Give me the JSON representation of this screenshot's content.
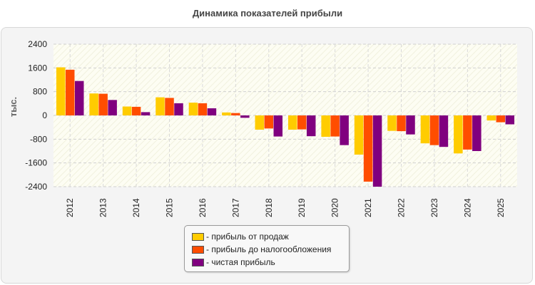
{
  "chart_data": {
    "type": "bar",
    "title": "Динамика показателей прибыли",
    "ylabel": "тыс.",
    "xlabel": "",
    "ylim": [
      -2400,
      2400
    ],
    "yticks": [
      2400,
      1600,
      800,
      0,
      -800,
      -1600,
      -2400
    ],
    "grid": true,
    "legend_position": "bottom-center",
    "categories": [
      "2012",
      "2013",
      "2014",
      "2015",
      "2016",
      "2017",
      "2018",
      "2019",
      "2020",
      "2021",
      "2022",
      "2023",
      "2024",
      "2025"
    ],
    "series": [
      {
        "name": "- прибыль от продаж",
        "color": "#ffcc00",
        "values": [
          1620,
          740,
          300,
          610,
          430,
          100,
          -480,
          -480,
          -720,
          -1320,
          -520,
          -940,
          -1280,
          -170
        ]
      },
      {
        "name": "- прибыль до налогообложения",
        "color": "#ff4d00",
        "values": [
          1540,
          730,
          290,
          590,
          410,
          80,
          -440,
          -470,
          -710,
          -2230,
          -530,
          -1000,
          -1150,
          -230
        ]
      },
      {
        "name": "- чистая прибыль",
        "color": "#80007f",
        "values": [
          1160,
          520,
          110,
          410,
          240,
          -80,
          -710,
          -700,
          -1000,
          -2400,
          -640,
          -1060,
          -1200,
          -300
        ]
      }
    ]
  }
}
